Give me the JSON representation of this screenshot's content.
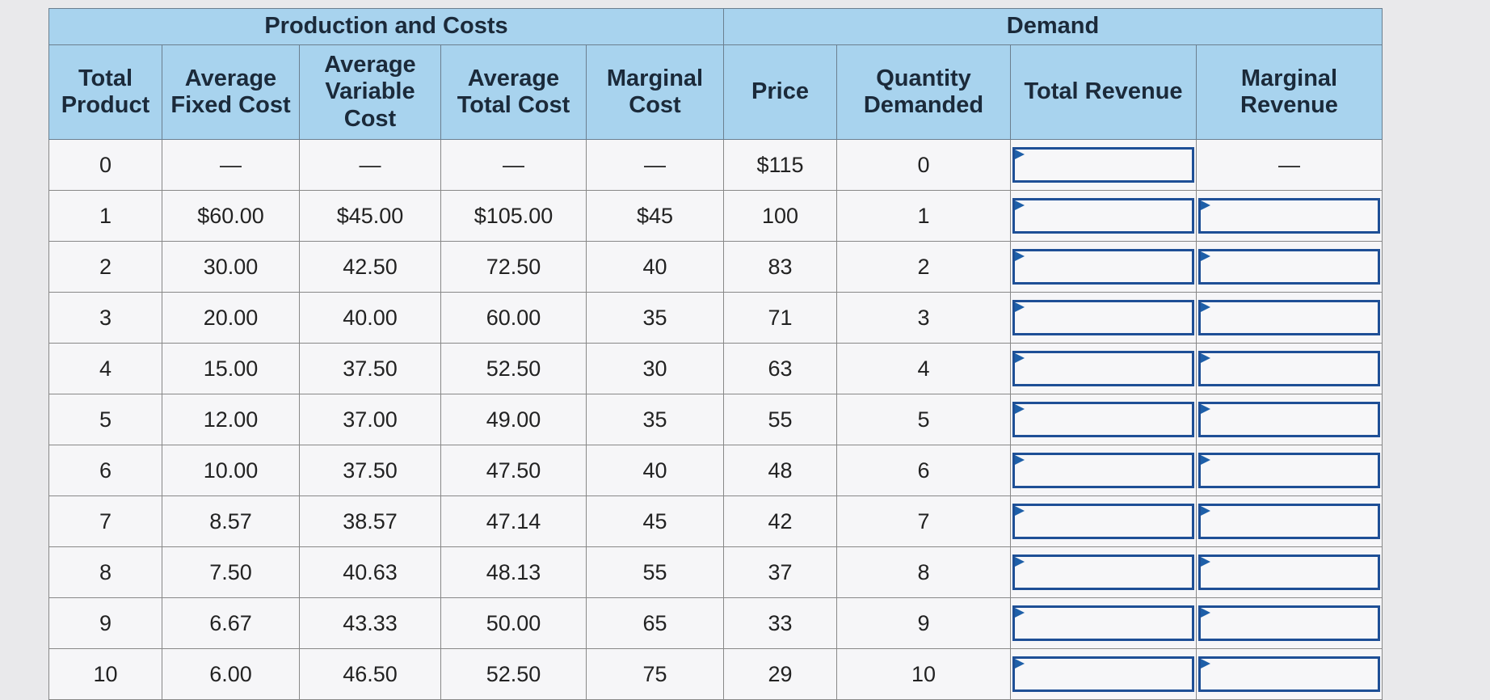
{
  "groups": [
    "Production and Costs",
    "Demand"
  ],
  "headers": [
    "Total Product",
    "Average Fixed Cost",
    "Average Variable Cost",
    "Average Total Cost",
    "Marginal Cost",
    "Price",
    "Quantity Demanded",
    "Total Revenue",
    "Marginal Revenue"
  ],
  "rows": [
    [
      "0",
      "—",
      "—",
      "—",
      "—",
      "$115",
      "0"
    ],
    [
      "1",
      "$60.00",
      "$45.00",
      "$105.00",
      "$45",
      "100",
      "1"
    ],
    [
      "2",
      "30.00",
      "42.50",
      "72.50",
      "40",
      "83",
      "2"
    ],
    [
      "3",
      "20.00",
      "40.00",
      "60.00",
      "35",
      "71",
      "3"
    ],
    [
      "4",
      "15.00",
      "37.50",
      "52.50",
      "30",
      "63",
      "4"
    ],
    [
      "5",
      "12.00",
      "37.00",
      "49.00",
      "35",
      "55",
      "5"
    ],
    [
      "6",
      "10.00",
      "37.50",
      "47.50",
      "40",
      "48",
      "6"
    ],
    [
      "7",
      "8.57",
      "38.57",
      "47.14",
      "45",
      "42",
      "7"
    ],
    [
      "8",
      "7.50",
      "40.63",
      "48.13",
      "55",
      "37",
      "8"
    ],
    [
      "9",
      "6.67",
      "43.33",
      "50.00",
      "65",
      "33",
      "9"
    ],
    [
      "10",
      "6.00",
      "46.50",
      "52.50",
      "75",
      "29",
      "10"
    ]
  ],
  "marginal_revenue_first": "—"
}
